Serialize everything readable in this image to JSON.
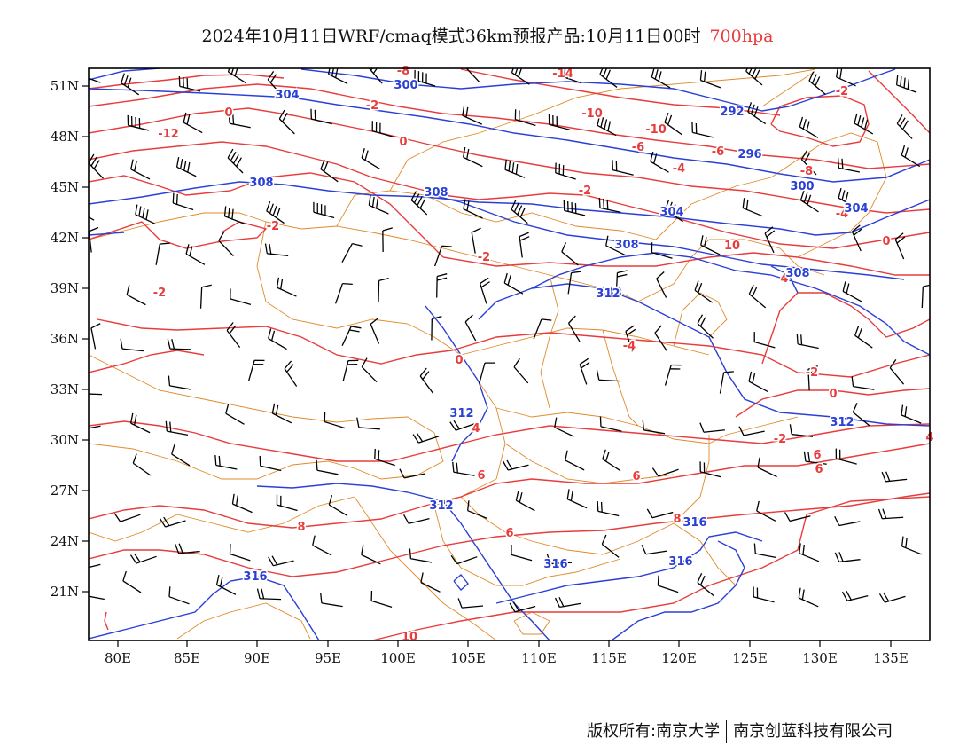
{
  "title": {
    "text": "2024年10月11日WRF/cmaq模式36km预报产品:10月11日00时",
    "level": "700hpa"
  },
  "colors": {
    "temperature": "#e83c3c",
    "height": "#2a3fd6",
    "border": "#e08a2a",
    "wind": "#000000"
  },
  "axes": {
    "lon_ticks": [
      "80E",
      "85E",
      "90E",
      "95E",
      "100E",
      "105E",
      "110E",
      "115E",
      "120E",
      "125E",
      "130E",
      "135E"
    ],
    "lat_ticks": [
      "51N",
      "48N",
      "45N",
      "42N",
      "39N",
      "36N",
      "33N",
      "30N",
      "27N",
      "24N",
      "21N"
    ]
  },
  "temp_labels": [
    "-8",
    "-14",
    "0",
    "-2",
    "-12",
    "-10",
    "-10",
    "-2",
    "0",
    "-6",
    "-6",
    "-4",
    "-8",
    "-2",
    "-4",
    "-2",
    "-2",
    "0",
    "4",
    "-2",
    "-4",
    "0",
    "-2",
    "0",
    "-2",
    "4",
    "4",
    "6",
    "6",
    "6",
    "6",
    "6",
    "8",
    "8",
    "10",
    "10"
  ],
  "height_labels": [
    "304",
    "300",
    "292",
    "308",
    "300",
    "296",
    "308",
    "308",
    "304",
    "304",
    "308",
    "308",
    "312",
    "312",
    "312",
    "312",
    "316",
    "316",
    "316",
    "316"
  ],
  "footer": {
    "left": "版权所有:南京大学",
    "right": "南京创蓝科技有限公司"
  }
}
